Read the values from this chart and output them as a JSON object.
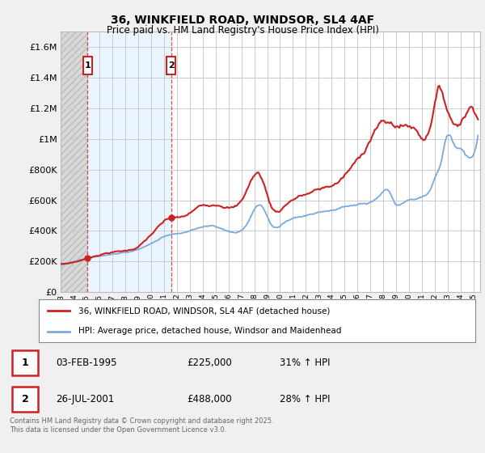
{
  "title": "36, WINKFIELD ROAD, WINDSOR, SL4 4AF",
  "subtitle": "Price paid vs. HM Land Registry's House Price Index (HPI)",
  "legend_line1": "36, WINKFIELD ROAD, WINDSOR, SL4 4AF (detached house)",
  "legend_line2": "HPI: Average price, detached house, Windsor and Maidenhead",
  "table": [
    {
      "num": "1",
      "date": "03-FEB-1995",
      "price": "£225,000",
      "hpi": "31% ↑ HPI"
    },
    {
      "num": "2",
      "date": "26-JUL-2001",
      "price": "£488,000",
      "hpi": "28% ↑ HPI"
    }
  ],
  "footnote": "Contains HM Land Registry data © Crown copyright and database right 2025.\nThis data is licensed under the Open Government Licence v3.0.",
  "background_color": "#f0f0f0",
  "plot_background": "#ffffff",
  "red_color": "#cc2222",
  "blue_color": "#7aaadd",
  "hatch_color": "#d8d8d8",
  "shade_color": "#ddeeff",
  "ylim": [
    0,
    1700000
  ],
  "yticks": [
    0,
    200000,
    400000,
    600000,
    800000,
    1000000,
    1200000,
    1400000,
    1600000
  ],
  "ytick_labels": [
    "£0",
    "£200K",
    "£400K",
    "£600K",
    "£800K",
    "£1M",
    "£1.2M",
    "£1.4M",
    "£1.6M"
  ],
  "sale_years": [
    1995.09,
    2001.56
  ],
  "sale_prices": [
    225000,
    488000
  ],
  "sale_label_nums": [
    "1",
    "2"
  ],
  "vline_x": [
    1995.09,
    2001.56
  ],
  "xmin": 1993.0,
  "xmax": 2025.5,
  "hatch_end": 1995.09
}
